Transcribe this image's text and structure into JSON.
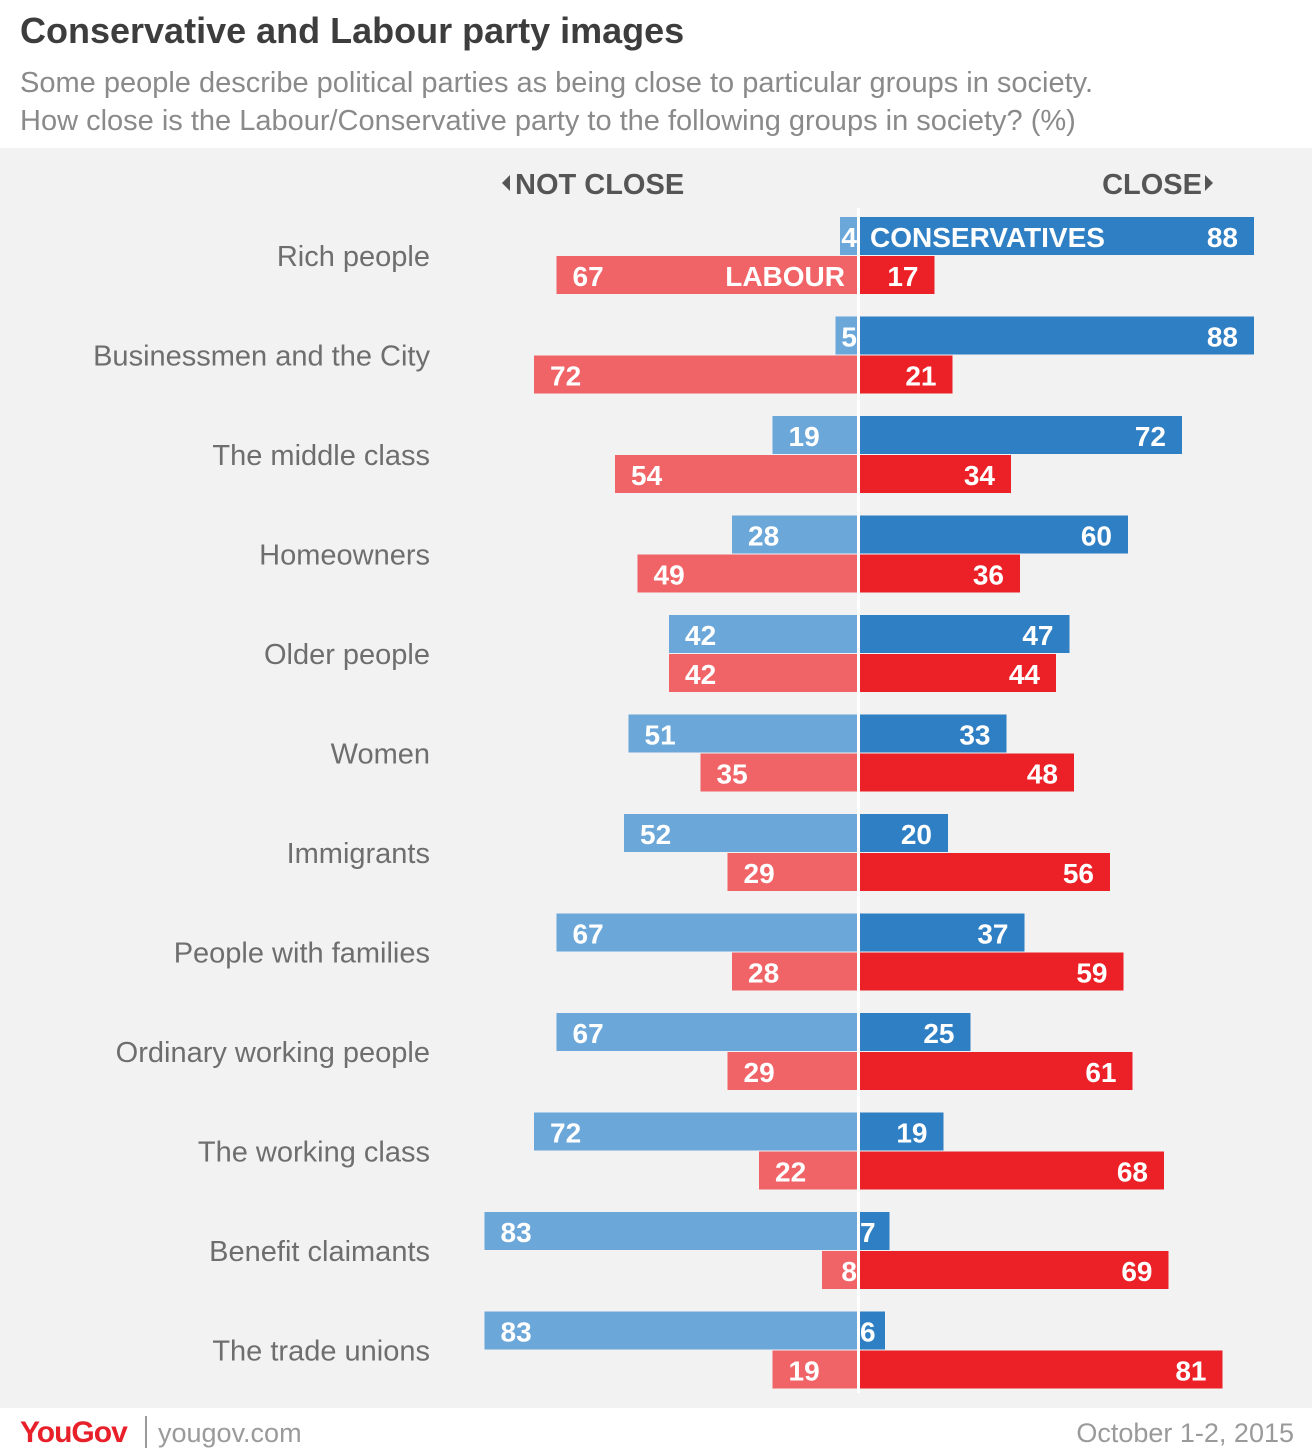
{
  "header": {
    "title": "Conservative and Labour party images",
    "subtitle_line1": "Some people describe political parties as being close to particular groups in society.",
    "subtitle_line2": "How close is the Labour/Conservative party to the following groups in society? (%)"
  },
  "footer": {
    "logo": "YouGov",
    "site": "yougov.com",
    "date": "October 1-2, 2015"
  },
  "colors": {
    "con_not_close": "#6ca7d9",
    "con_close": "#2f7fc4",
    "lab_not_close": "#f06468",
    "lab_close": "#ec2127",
    "label_text": "#6e6e6e",
    "divider": "#ffffff"
  },
  "chart_data": {
    "type": "bar",
    "orientation": "horizontal-diverging",
    "axis_left_label": "NOT CLOSE",
    "axis_right_label": "CLOSE",
    "inline_series_labels": {
      "conservatives": "CONSERVATIVES",
      "labour": "LABOUR"
    },
    "categories": [
      "Rich people",
      "Businessmen and the City",
      "The middle class",
      "Homeowners",
      "Older people",
      "Women",
      "Immigrants",
      "People with families",
      "Ordinary working people",
      "The working class",
      "Benefit claimants",
      "The trade unions"
    ],
    "series": [
      {
        "name": "Conservatives not close",
        "values": [
          4,
          5,
          19,
          28,
          42,
          51,
          52,
          67,
          67,
          72,
          83,
          83
        ]
      },
      {
        "name": "Conservatives close",
        "values": [
          88,
          88,
          72,
          60,
          47,
          33,
          20,
          37,
          25,
          19,
          7,
          6
        ]
      },
      {
        "name": "Labour not close",
        "values": [
          67,
          72,
          54,
          49,
          42,
          35,
          29,
          28,
          29,
          22,
          8,
          19
        ]
      },
      {
        "name": "Labour close",
        "values": [
          17,
          21,
          34,
          36,
          44,
          48,
          56,
          59,
          61,
          68,
          69,
          81
        ]
      }
    ],
    "units": "%"
  }
}
